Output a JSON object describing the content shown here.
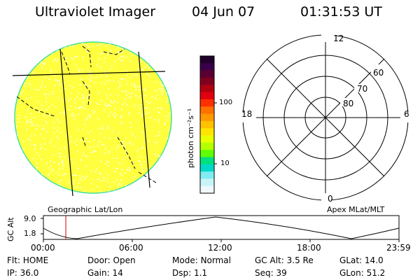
{
  "header": {
    "instrument": "Ultraviolet Imager",
    "date": "04 Jun 07",
    "time": "01:31:53 UT"
  },
  "left_panel": {
    "caption": "Geographic Lat/Lon",
    "fill_color": "#ffff40",
    "speckle_color": "#ffffc8",
    "rim_color": "#40e0a0"
  },
  "colorbar": {
    "unit_label": "photon cm⁻²s⁻¹",
    "ticks": [
      "100",
      "10"
    ],
    "colors_top_to_bottom": [
      "#20002a",
      "#3a004a",
      "#5a0030",
      "#800020",
      "#b00010",
      "#e00010",
      "#ff3000",
      "#ff7000",
      "#ff9800",
      "#ffc000",
      "#ffe400",
      "#e8ff00",
      "#b4ff00",
      "#60ff00",
      "#00e080",
      "#00d8c8",
      "#80ecf0",
      "#c8f4f8",
      "#f0f8fc"
    ]
  },
  "right_panel": {
    "caption": "Apex MLat/MLT",
    "mlt_labels": {
      "top": "12",
      "bottom": "0",
      "left": "18",
      "right": "6"
    },
    "lat_labels": [
      "60",
      "70",
      "80"
    ]
  },
  "altitude_plot": {
    "ylabel": "GC Alt",
    "y_ticks": [
      "9.0",
      "1.8"
    ],
    "x_ticks": [
      "00:00",
      "06:00",
      "12:00",
      "18:00",
      "23:59"
    ],
    "marker_color": "#d00000"
  },
  "status": {
    "row1": [
      {
        "label": "Flt:",
        "value": "HOME"
      },
      {
        "label": "Door:",
        "value": "Open"
      },
      {
        "label": "Mode:",
        "value": "Normal"
      },
      {
        "label": "GC Alt:",
        "value": "3.5 Re"
      },
      {
        "label": "GLat:",
        "value": "14.0"
      }
    ],
    "row2": [
      {
        "label": "IP:",
        "value": "36.0"
      },
      {
        "label": "Gain:",
        "value": "14"
      },
      {
        "label": "Dsp:",
        "value": "1.1"
      },
      {
        "label": "Seq:",
        "value": "39"
      },
      {
        "label": "GLon:",
        "value": "51.2"
      }
    ]
  }
}
